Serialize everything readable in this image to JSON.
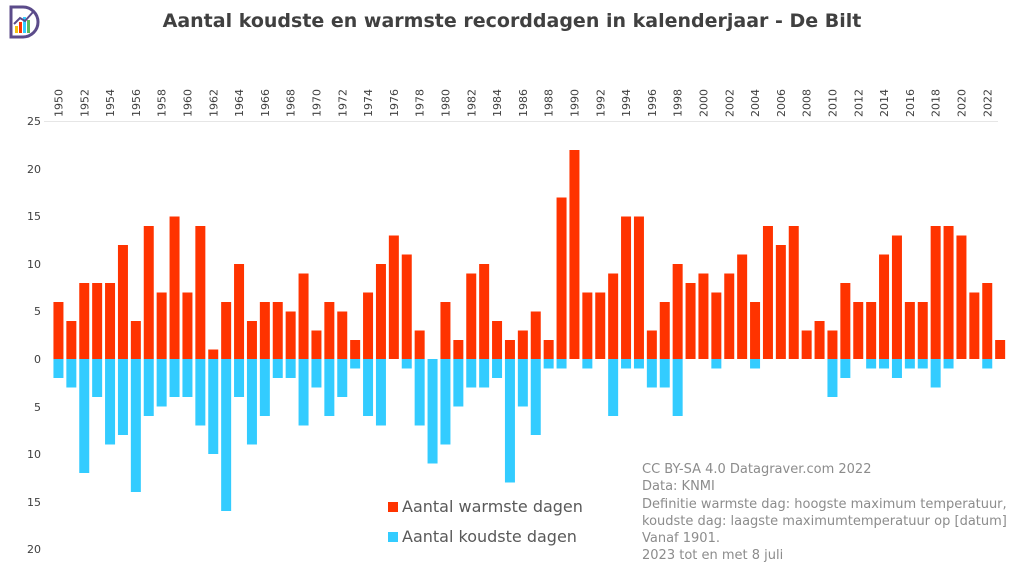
{
  "title": "Aantal koudste en warmste recorddagen in kalenderjaar - De Bilt",
  "colors": {
    "warm": "#ff3300",
    "cold": "#33ccff",
    "axis_text": "#404040",
    "grid": "#e6e6e6"
  },
  "legend": {
    "warm": "Aantal warmste dagen",
    "cold": "Aantal koudste dagen"
  },
  "credits": [
    "CC BY-SA 4.0 Datagraver.com 2022",
    "Data: KNMI",
    "Definitie warmste dag: hoogste maximum temperatuur,",
    "koudste dag: laagste maximumtemperatuur op [datum]",
    "Vanaf 1901.",
    "2023 tot en met 8 juli"
  ],
  "chart_data": {
    "type": "bar",
    "title": "Aantal koudste en warmste recorddagen in kalenderjaar - De Bilt",
    "xlabel": "",
    "ylabel": "",
    "ylim": [
      -20,
      25
    ],
    "grid": true,
    "legend_position": "bottom-center",
    "y_ticks": [
      {
        "value": 25,
        "label": "25"
      },
      {
        "value": 20,
        "label": "20"
      },
      {
        "value": 15,
        "label": "15"
      },
      {
        "value": 10,
        "label": "10"
      },
      {
        "value": 5,
        "label": "5"
      },
      {
        "value": 0,
        "label": "0"
      },
      {
        "value": -5,
        "label": "5"
      },
      {
        "value": -10,
        "label": "10"
      },
      {
        "value": -15,
        "label": "15"
      },
      {
        "value": -20,
        "label": "20"
      }
    ],
    "x_tick_labels": [
      "1950",
      "1952",
      "1954",
      "1956",
      "1958",
      "1960",
      "1962",
      "1964",
      "1966",
      "1968",
      "1970",
      "1972",
      "1974",
      "1976",
      "1978",
      "1980",
      "1982",
      "1984",
      "1986",
      "1988",
      "1990",
      "1992",
      "1994",
      "1996",
      "1998",
      "2000",
      "2002",
      "2004",
      "2006",
      "2008",
      "2010",
      "2012",
      "2014",
      "2016",
      "2018",
      "2020",
      "2022"
    ],
    "categories": [
      1950,
      1951,
      1952,
      1953,
      1954,
      1955,
      1956,
      1957,
      1958,
      1959,
      1960,
      1961,
      1962,
      1963,
      1964,
      1965,
      1966,
      1967,
      1968,
      1969,
      1970,
      1971,
      1972,
      1973,
      1974,
      1975,
      1976,
      1977,
      1978,
      1979,
      1980,
      1981,
      1982,
      1983,
      1984,
      1985,
      1986,
      1987,
      1988,
      1989,
      1990,
      1991,
      1992,
      1993,
      1994,
      1995,
      1996,
      1997,
      1998,
      1999,
      2000,
      2001,
      2002,
      2003,
      2004,
      2005,
      2006,
      2007,
      2008,
      2009,
      2010,
      2011,
      2012,
      2013,
      2014,
      2015,
      2016,
      2017,
      2018,
      2019,
      2020,
      2021,
      2022,
      2023
    ],
    "series": [
      {
        "name": "Aantal warmste dagen",
        "values": [
          6,
          4,
          8,
          8,
          8,
          12,
          4,
          14,
          7,
          15,
          7,
          14,
          1,
          6,
          10,
          4,
          6,
          6,
          5,
          9,
          3,
          6,
          5,
          2,
          7,
          10,
          13,
          11,
          3,
          0,
          6,
          2,
          9,
          10,
          4,
          2,
          3,
          5,
          2,
          17,
          22,
          7,
          7,
          9,
          15,
          15,
          3,
          6,
          10,
          8,
          9,
          7,
          9,
          11,
          6,
          14,
          12,
          14,
          3,
          4,
          3,
          8,
          6,
          6,
          11,
          13,
          6,
          6,
          14,
          14,
          13,
          7,
          8,
          2
        ]
      },
      {
        "name": "Aantal koudste dagen",
        "values": [
          -2,
          -3,
          -12,
          -4,
          -9,
          -8,
          -14,
          -6,
          -5,
          -4,
          -4,
          -7,
          -10,
          -16,
          -4,
          -9,
          -6,
          -2,
          -2,
          -7,
          -3,
          -6,
          -4,
          -1,
          -6,
          -7,
          0,
          -1,
          -7,
          -11,
          -9,
          -5,
          -3,
          -3,
          -2,
          -13,
          -5,
          -8,
          -1,
          -1,
          0,
          -1,
          0,
          -6,
          -1,
          -1,
          -3,
          -3,
          -6,
          0,
          0,
          -1,
          0,
          0,
          -1,
          0,
          0,
          0,
          0,
          0,
          -4,
          -2,
          0,
          -1,
          -1,
          -2,
          -1,
          -1,
          -3,
          -1,
          0,
          0,
          -1,
          0
        ]
      }
    ]
  }
}
